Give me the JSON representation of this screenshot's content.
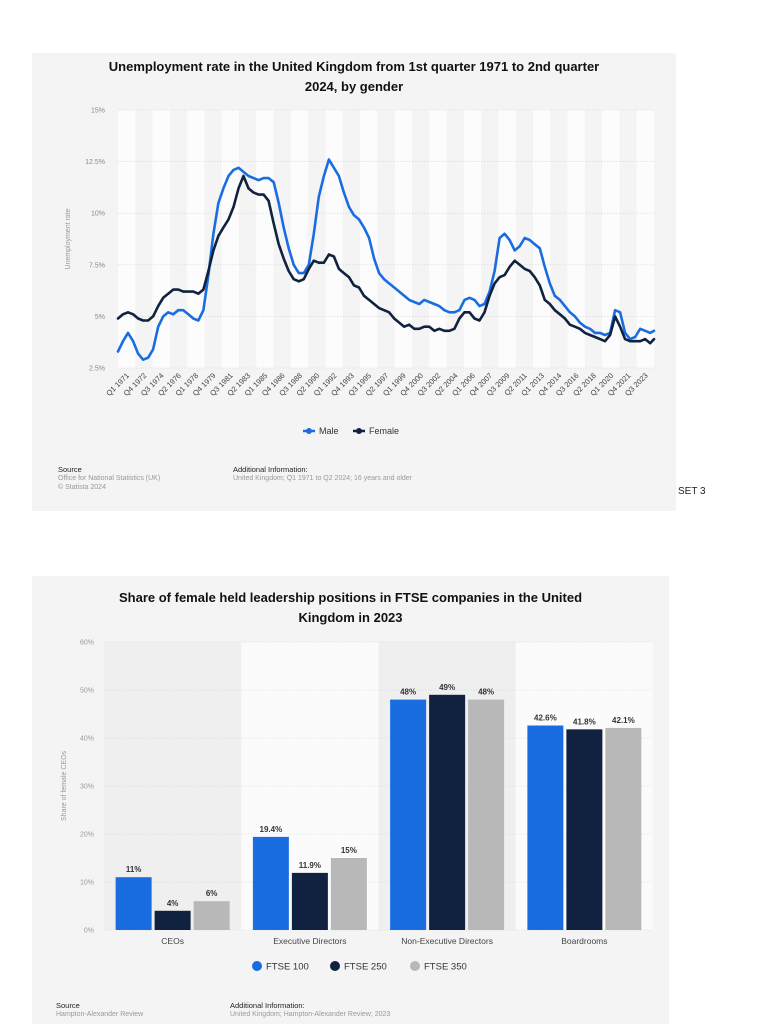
{
  "page_label": "SET 3",
  "chart_data": [
    {
      "type": "line",
      "title_lines": [
        "Unemployment rate in the United Kingdom from 1st quarter 1971 to 2nd quarter",
        "2024, by gender"
      ],
      "ylabel": "Unemployment rate",
      "ylim": [
        2.5,
        15
      ],
      "y_ticks": [
        2.5,
        5,
        7.5,
        10,
        12.5,
        15
      ],
      "y_tick_labels": [
        "2.5%",
        "5%",
        "7.5%",
        "10%",
        "12.5%",
        "15%"
      ],
      "x_tick_labels": [
        "Q1 1971",
        "Q4 1972",
        "Q3 1974",
        "Q2 1976",
        "Q1 1978",
        "Q4 1979",
        "Q3 1981",
        "Q2 1983",
        "Q1 1985",
        "Q4 1986",
        "Q3 1988",
        "Q2 1990",
        "Q1 1992",
        "Q4 1993",
        "Q3 1995",
        "Q2 1997",
        "Q1 1999",
        "Q4 2000",
        "Q3 2002",
        "Q2 2004",
        "Q1 2006",
        "Q4 2007",
        "Q3 2009",
        "Q2 2011",
        "Q1 2013",
        "Q4 2014",
        "Q3 2016",
        "Q2 2018",
        "Q1 2020",
        "Q4 2021",
        "Q3 2023"
      ],
      "x_range": [
        1971.0,
        2024.375
      ],
      "grid": true,
      "legend_position": "bottom-center",
      "colors": {
        "male": "#1a6de0",
        "female": "#10223f"
      },
      "series": [
        {
          "name": "Male",
          "x": [
            1971.0,
            1971.5,
            1972.0,
            1972.5,
            1973.0,
            1973.5,
            1974.0,
            1974.5,
            1975.0,
            1975.5,
            1976.0,
            1976.5,
            1977.0,
            1977.5,
            1978.0,
            1978.5,
            1979.0,
            1979.5,
            1980.0,
            1980.5,
            1981.0,
            1981.5,
            1982.0,
            1982.5,
            1983.0,
            1983.5,
            1984.0,
            1984.5,
            1985.0,
            1985.5,
            1986.0,
            1986.5,
            1987.0,
            1987.5,
            1988.0,
            1988.5,
            1989.0,
            1989.5,
            1990.0,
            1990.5,
            1991.0,
            1991.5,
            1992.0,
            1992.5,
            1993.0,
            1993.5,
            1994.0,
            1994.5,
            1995.0,
            1995.5,
            1996.0,
            1996.5,
            1997.0,
            1997.5,
            1998.0,
            1998.5,
            1999.0,
            1999.5,
            2000.0,
            2000.5,
            2001.0,
            2001.5,
            2002.0,
            2002.5,
            2003.0,
            2003.5,
            2004.0,
            2004.5,
            2005.0,
            2005.5,
            2006.0,
            2006.5,
            2007.0,
            2007.5,
            2008.0,
            2008.5,
            2009.0,
            2009.5,
            2010.0,
            2010.5,
            2011.0,
            2011.5,
            2012.0,
            2012.5,
            2013.0,
            2013.5,
            2014.0,
            2014.5,
            2015.0,
            2015.5,
            2016.0,
            2016.5,
            2017.0,
            2017.5,
            2018.0,
            2018.5,
            2019.0,
            2019.5,
            2020.0,
            2020.5,
            2021.0,
            2021.5,
            2022.0,
            2022.5,
            2023.0,
            2023.5,
            2024.0,
            2024.375
          ],
          "values": [
            3.3,
            3.8,
            4.2,
            3.8,
            3.2,
            2.9,
            3.0,
            3.4,
            4.5,
            5.0,
            5.2,
            5.1,
            5.3,
            5.3,
            5.1,
            4.9,
            4.8,
            5.3,
            7.0,
            9.0,
            10.5,
            11.2,
            11.8,
            12.1,
            12.2,
            12.0,
            11.8,
            11.7,
            11.6,
            11.7,
            11.7,
            11.5,
            10.5,
            9.3,
            8.3,
            7.5,
            7.1,
            7.1,
            7.5,
            9.0,
            10.8,
            11.8,
            12.6,
            12.2,
            11.8,
            11.0,
            10.3,
            9.9,
            9.7,
            9.3,
            8.8,
            7.8,
            7.1,
            6.8,
            6.6,
            6.4,
            6.2,
            6.0,
            5.8,
            5.7,
            5.6,
            5.8,
            5.7,
            5.6,
            5.5,
            5.3,
            5.2,
            5.2,
            5.3,
            5.8,
            5.9,
            5.8,
            5.5,
            5.6,
            6.2,
            7.2,
            8.8,
            9.0,
            8.7,
            8.2,
            8.4,
            8.8,
            8.7,
            8.5,
            8.3,
            7.4,
            6.6,
            6.0,
            5.8,
            5.5,
            5.2,
            5.0,
            4.7,
            4.5,
            4.4,
            4.2,
            4.2,
            4.1,
            4.2,
            5.3,
            5.2,
            4.2,
            3.9,
            4.0,
            4.4,
            4.3,
            4.2,
            4.3
          ]
        },
        {
          "name": "Female",
          "x": [
            1971.0,
            1971.5,
            1972.0,
            1972.5,
            1973.0,
            1973.5,
            1974.0,
            1974.5,
            1975.0,
            1975.5,
            1976.0,
            1976.5,
            1977.0,
            1977.5,
            1978.0,
            1978.5,
            1979.0,
            1979.5,
            1980.0,
            1980.5,
            1981.0,
            1981.5,
            1982.0,
            1982.5,
            1983.0,
            1983.5,
            1984.0,
            1984.5,
            1985.0,
            1985.5,
            1986.0,
            1986.5,
            1987.0,
            1987.5,
            1988.0,
            1988.5,
            1989.0,
            1989.5,
            1990.0,
            1990.5,
            1991.0,
            1991.5,
            1992.0,
            1992.5,
            1993.0,
            1993.5,
            1994.0,
            1994.5,
            1995.0,
            1995.5,
            1996.0,
            1996.5,
            1997.0,
            1997.5,
            1998.0,
            1998.5,
            1999.0,
            1999.5,
            2000.0,
            2000.5,
            2001.0,
            2001.5,
            2002.0,
            2002.5,
            2003.0,
            2003.5,
            2004.0,
            2004.5,
            2005.0,
            2005.5,
            2006.0,
            2006.5,
            2007.0,
            2007.5,
            2008.0,
            2008.5,
            2009.0,
            2009.5,
            2010.0,
            2010.5,
            2011.0,
            2011.5,
            2012.0,
            2012.5,
            2013.0,
            2013.5,
            2014.0,
            2014.5,
            2015.0,
            2015.5,
            2016.0,
            2016.5,
            2017.0,
            2017.5,
            2018.0,
            2018.5,
            2019.0,
            2019.5,
            2020.0,
            2020.5,
            2021.0,
            2021.5,
            2022.0,
            2022.5,
            2023.0,
            2023.5,
            2024.0,
            2024.375
          ],
          "values": [
            4.9,
            5.1,
            5.2,
            5.1,
            4.9,
            4.8,
            4.8,
            5.0,
            5.5,
            5.9,
            6.1,
            6.3,
            6.3,
            6.2,
            6.2,
            6.2,
            6.1,
            6.3,
            7.2,
            8.2,
            8.9,
            9.3,
            9.7,
            10.3,
            11.2,
            11.8,
            11.2,
            11.0,
            10.9,
            10.9,
            10.6,
            9.5,
            8.5,
            7.8,
            7.2,
            6.8,
            6.7,
            6.8,
            7.3,
            7.7,
            7.6,
            7.6,
            8.0,
            7.9,
            7.3,
            7.1,
            6.9,
            6.5,
            6.4,
            6.0,
            5.8,
            5.6,
            5.4,
            5.3,
            5.2,
            4.9,
            4.7,
            4.5,
            4.6,
            4.4,
            4.4,
            4.5,
            4.5,
            4.3,
            4.4,
            4.3,
            4.3,
            4.4,
            4.9,
            5.2,
            5.2,
            4.9,
            4.8,
            5.2,
            6.0,
            6.6,
            6.9,
            7.0,
            7.4,
            7.7,
            7.5,
            7.3,
            7.2,
            6.9,
            6.5,
            5.8,
            5.6,
            5.3,
            5.1,
            4.9,
            4.6,
            4.5,
            4.4,
            4.2,
            4.1,
            4.0,
            3.9,
            3.8,
            4.1,
            5.0,
            4.5,
            3.9,
            3.8,
            3.8,
            3.8,
            3.9,
            3.7,
            3.9
          ]
        }
      ],
      "source_heading": "Source",
      "source_lines": [
        "Office for National Statistics (UK)",
        "© Statista 2024"
      ],
      "additional_heading": "Additional Information:",
      "additional_lines": [
        "United Kingdom; Q1 1971 to Q2 2024; 16 years and older"
      ]
    },
    {
      "type": "bar",
      "title_lines": [
        "Share of female held leadership positions in FTSE companies in the United",
        "Kingdom in 2023"
      ],
      "ylabel": "Share of female CEOs",
      "ylim": [
        0,
        60
      ],
      "y_ticks": [
        0,
        10,
        20,
        30,
        40,
        50,
        60
      ],
      "y_tick_labels": [
        "0%",
        "10%",
        "20%",
        "30%",
        "40%",
        "50%",
        "60%"
      ],
      "categories": [
        "CEOs",
        "Executive Directors",
        "Non-Executive Directors",
        "Boardrooms"
      ],
      "grid": true,
      "legend_position": "bottom-center",
      "series": [
        {
          "name": "FTSE 100",
          "color": "#1a6de0",
          "values": [
            11,
            19.4,
            48,
            42.6
          ],
          "labels": [
            "11%",
            "19.4%",
            "48%",
            "42.6%"
          ]
        },
        {
          "name": "FTSE 250",
          "color": "#10223f",
          "values": [
            4,
            11.9,
            49,
            41.8
          ],
          "labels": [
            "4%",
            "11.9%",
            "49%",
            "41.8%"
          ]
        },
        {
          "name": "FTSE 350",
          "color": "#b8b8b8",
          "values": [
            6,
            15,
            48,
            42.1
          ],
          "labels": [
            "6%",
            "15%",
            "48%",
            "42.1%"
          ]
        }
      ],
      "source_heading": "Source",
      "source_lines": [
        "Hampton-Alexander Review"
      ],
      "additional_heading": "Additional Information:",
      "additional_lines": [
        "United Kingdom; Hampton-Alexander Review; 2023"
      ]
    }
  ]
}
